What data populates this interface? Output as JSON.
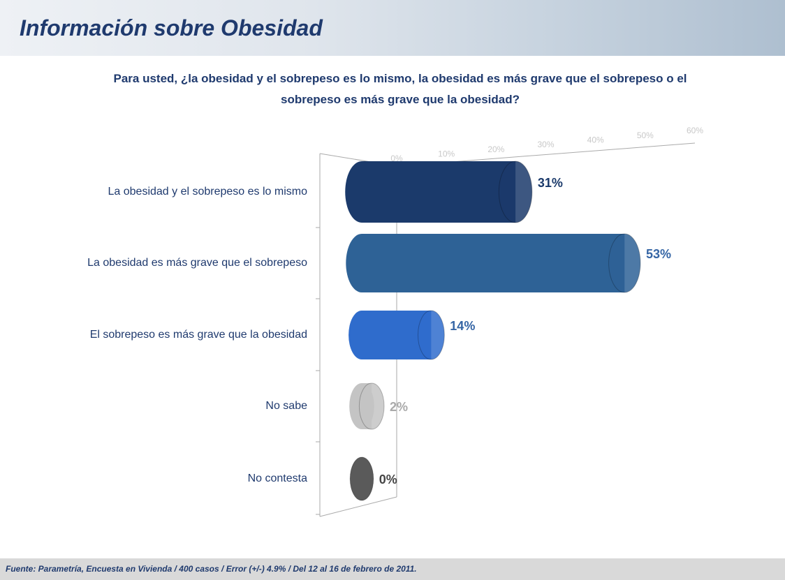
{
  "header": {
    "title": "Información sobre Obesidad"
  },
  "chart_data": {
    "type": "bar",
    "title": "Para usted, ¿la obesidad y el sobrepeso es lo mismo, la obesidad es más grave que el sobrepeso o el sobrepeso es más grave que la obesidad?",
    "categories": [
      "La obesidad y el sobrepeso es lo mismo",
      "La obesidad es más grave que el sobrepeso",
      "El sobrepeso es más grave que la obesidad",
      "No sabe",
      "No contesta"
    ],
    "values": [
      31,
      53,
      14,
      2,
      0
    ],
    "value_labels": [
      "31%",
      "53%",
      "14%",
      "2%",
      "0%"
    ],
    "colors": [
      "#1b3a6b",
      "#2e6296",
      "#2f6ccc",
      "#c4c4c4",
      "#5a5a5a"
    ],
    "xlim": [
      0,
      60
    ],
    "xticks": [
      {
        "value": 0,
        "label": "0%"
      },
      {
        "value": 10,
        "label": "10%"
      },
      {
        "value": 20,
        "label": "20%"
      },
      {
        "value": 30,
        "label": "30%"
      },
      {
        "value": 40,
        "label": "40%"
      },
      {
        "value": 50,
        "label": "50%"
      },
      {
        "value": 60,
        "label": "60%"
      }
    ]
  },
  "footer": {
    "source": "Fuente: Parametría, Encuesta en Vivienda / 400 casos / Error (+/-) 4.9% / Del 12 al 16 de febrero de 2011."
  }
}
